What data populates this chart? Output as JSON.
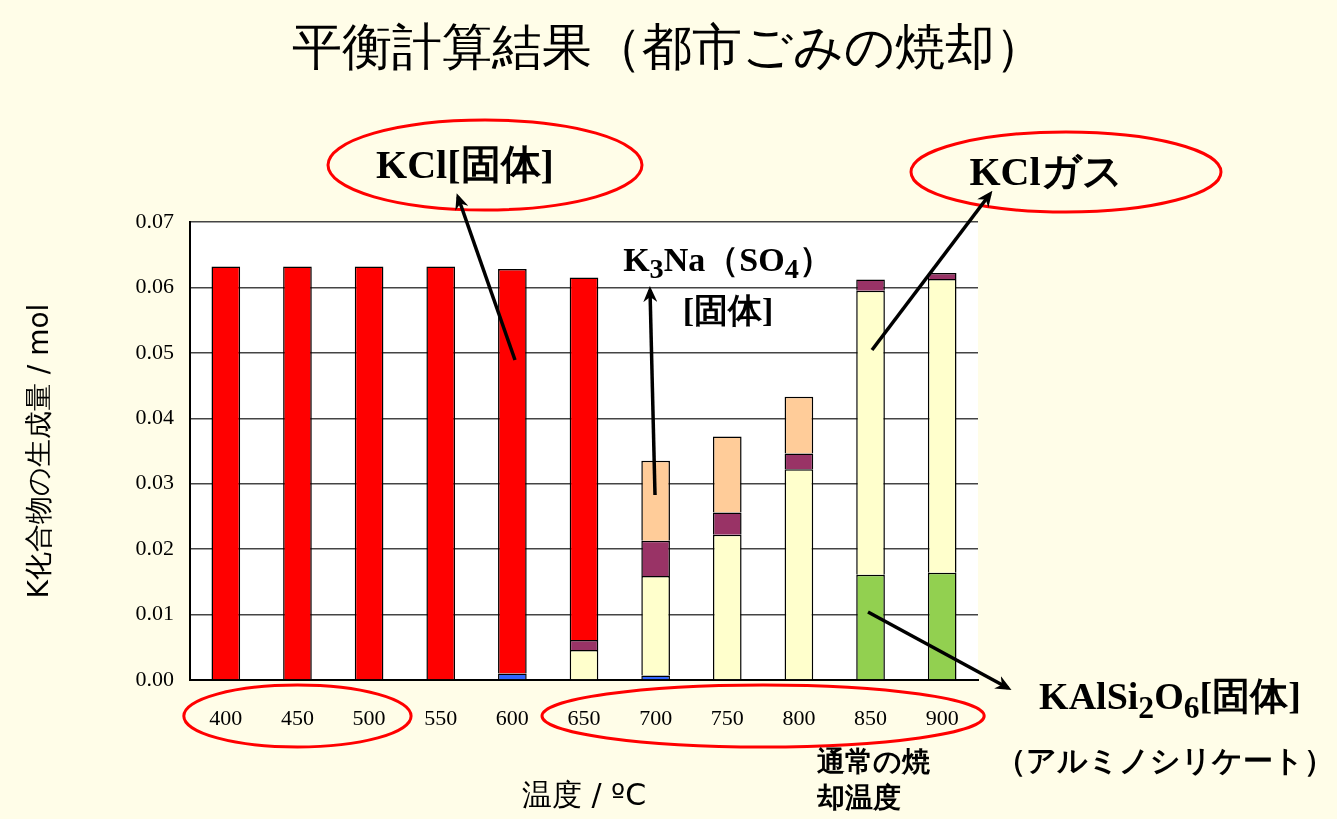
{
  "chart_data": {
    "type": "bar",
    "title": "平衡計算結果（都市ごみの焼却）",
    "ylabel": "K化合物の生成量 / mol",
    "xlabel": "温度 / ºC",
    "categories": [
      "400",
      "450",
      "500",
      "550",
      "600",
      "650",
      "700",
      "750",
      "800",
      "850",
      "900"
    ],
    "stacked": true,
    "grid": "y",
    "ylim": [
      0,
      0.07
    ],
    "yticks": [
      {
        "value": 0,
        "label": "0.00"
      },
      {
        "value": 0.01,
        "label": "0.01"
      },
      {
        "value": 0.02,
        "label": "0.02"
      },
      {
        "value": 0.03,
        "label": "0.03"
      },
      {
        "value": 0.04,
        "label": "0.04"
      },
      {
        "value": 0.05,
        "label": "0.05"
      },
      {
        "value": 0.06,
        "label": "0.06"
      },
      {
        "value": 0.07,
        "label": "0.07"
      }
    ],
    "series": [
      {
        "color": "#3366ff",
        "values": [
          null,
          null,
          null,
          null,
          0.001,
          null,
          0.0007,
          null,
          null,
          null,
          null
        ]
      },
      {
        "color": "#92d050",
        "values": [
          null,
          null,
          null,
          null,
          null,
          null,
          null,
          null,
          null,
          0.0161,
          0.0164
        ]
      },
      {
        "color": "#ffffcc",
        "values": [
          null,
          null,
          null,
          null,
          null,
          0.0046,
          0.0152,
          0.0222,
          0.0322,
          0.0434,
          0.0449
        ]
      },
      {
        "color": "#993366",
        "values": [
          null,
          null,
          null,
          null,
          null,
          0.0015,
          0.0054,
          0.0034,
          0.0024,
          0.0017,
          0.0009
        ]
      },
      {
        "color": "#ffcc99",
        "values": [
          null,
          null,
          null,
          null,
          null,
          null,
          0.0122,
          0.0116,
          0.0087,
          null,
          null
        ]
      },
      {
        "color": "#ff0000",
        "values": [
          0.0632,
          0.0632,
          0.0632,
          0.0632,
          0.0618,
          0.0554,
          null,
          null,
          null,
          null,
          null
        ]
      }
    ],
    "annotations": [
      "KCl[固体]",
      "K$_{3}$Na（SO$_{4}$）\n[固体]",
      "KClガス",
      "KAlSi$_{2}$O$_{6}$[固体]",
      "（アルミノシリケート）",
      "通常の焼却温度"
    ]
  }
}
